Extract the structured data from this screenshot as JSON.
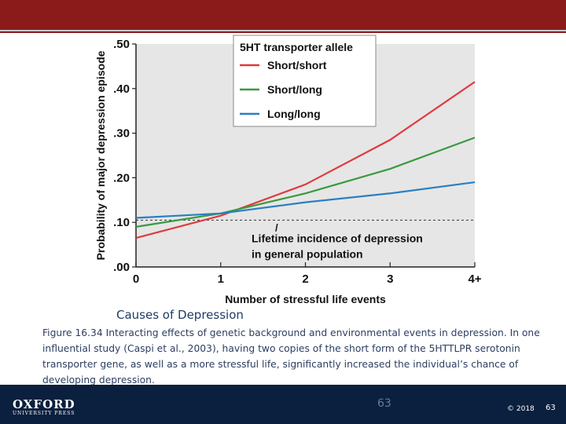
{
  "chart_data": {
    "type": "line",
    "title": "",
    "xlabel": "Number of stressful life events",
    "ylabel": "Probability of major depression episode",
    "x": [
      0,
      1,
      2,
      3,
      4
    ],
    "x_tick_labels": [
      "0",
      "1",
      "2",
      "3",
      "4+"
    ],
    "y_ticks": [
      0,
      0.1,
      0.2,
      0.3,
      0.4,
      0.5
    ],
    "y_tick_labels": [
      ".00",
      ".10",
      ".20",
      ".30",
      ".40",
      ".50"
    ],
    "xlim": [
      0,
      4
    ],
    "ylim": [
      0,
      0.5
    ],
    "grid": false,
    "legend_title": "5HT transporter allele",
    "legend_position": "top-right",
    "series": [
      {
        "name": "Short/short",
        "color": "#e03a3e",
        "values": [
          0.065,
          0.115,
          0.185,
          0.285,
          0.415
        ]
      },
      {
        "name": "Short/long",
        "color": "#3a9a3e",
        "values": [
          0.09,
          0.12,
          0.165,
          0.22,
          0.29
        ]
      },
      {
        "name": "Long/long",
        "color": "#2a7fc0",
        "values": [
          0.11,
          0.12,
          0.145,
          0.165,
          0.19
        ]
      }
    ],
    "reference_line": {
      "value": 0.105,
      "style": "dashed"
    },
    "annotation": {
      "marker": "/",
      "line1": "Lifetime incidence of depression",
      "line2": "in general population"
    }
  },
  "caption": {
    "title": "Causes of Depression",
    "body": "Figure 16.34 Interacting effects of genetic background and environmental events in depression. In one influential study (Caspi et al., 2003), having two copies of the short form of the 5HTTLPR serotonin transporter gene, as well as a more stressful life, significantly increased the individual’s chance of developing depression."
  },
  "footer": {
    "logo_main": "OXFORD",
    "logo_sub": "UNIVERSITY PRESS",
    "page_number": "63",
    "copyright": "© 2018",
    "page_number_right": "63"
  },
  "colors": {
    "header_bar": "#8b1a1a",
    "footer_bar": "#0b1f3e",
    "plot_background": "#e6e6e6"
  }
}
